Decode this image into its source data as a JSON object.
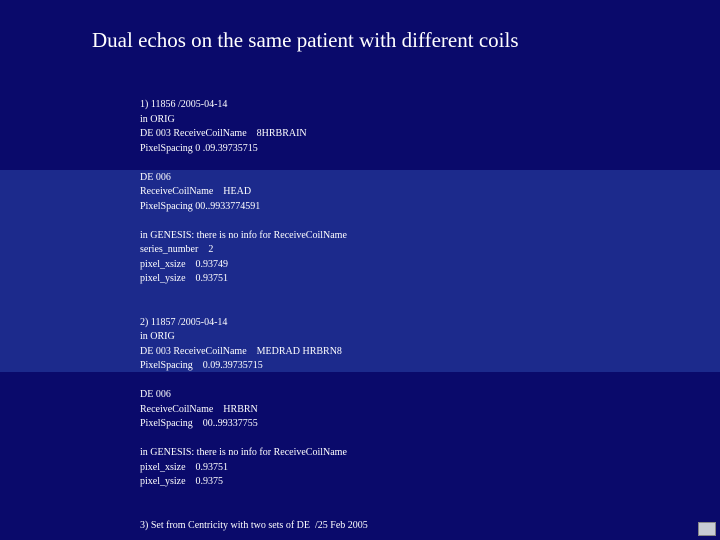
{
  "title": "Dual echos on the same patient with different coils",
  "colors": {
    "background": "#0a0a6b",
    "band": "#1c2a8c",
    "text": "#ffffff"
  },
  "block1": {
    "l1": "1) 11856 /2005-04-14",
    "l2": "in ORIG",
    "l3": "DE 003 ReceiveCoilName    8HRBRAIN",
    "l4": "PixelSpacing 0 .09.39735715",
    "l5": "DE 006",
    "l6": "ReceiveCoilName    HEAD",
    "l7": "PixelSpacing 00..9933774591",
    "l8": "in GENESIS: there is no info for ReceiveCoilName",
    "l9": "series_number    2",
    "l10": "pixel_xsize    0.93749",
    "l11": "pixel_ysize    0.93751"
  },
  "block2": {
    "l1": "2) 11857 /2005-04-14",
    "l2": "in ORIG",
    "l3": "DE 003 ReceiveCoilName    MEDRAD HRBRN8",
    "l4": "PixelSpacing    0.09.39735715",
    "l5": "DE 006",
    "l6": "ReceiveCoilName    HRBRN",
    "l7": "PixelSpacing    00..99337755",
    "l8": "in GENESIS: there is no info for ReceiveCoilName",
    "l9": "pixel_xsize    0.93751",
    "l10": "pixel_ysize    0.9375"
  },
  "block3": {
    "l1": "3) Set from Centricity with two sets of DE  /25 Feb 2005"
  }
}
